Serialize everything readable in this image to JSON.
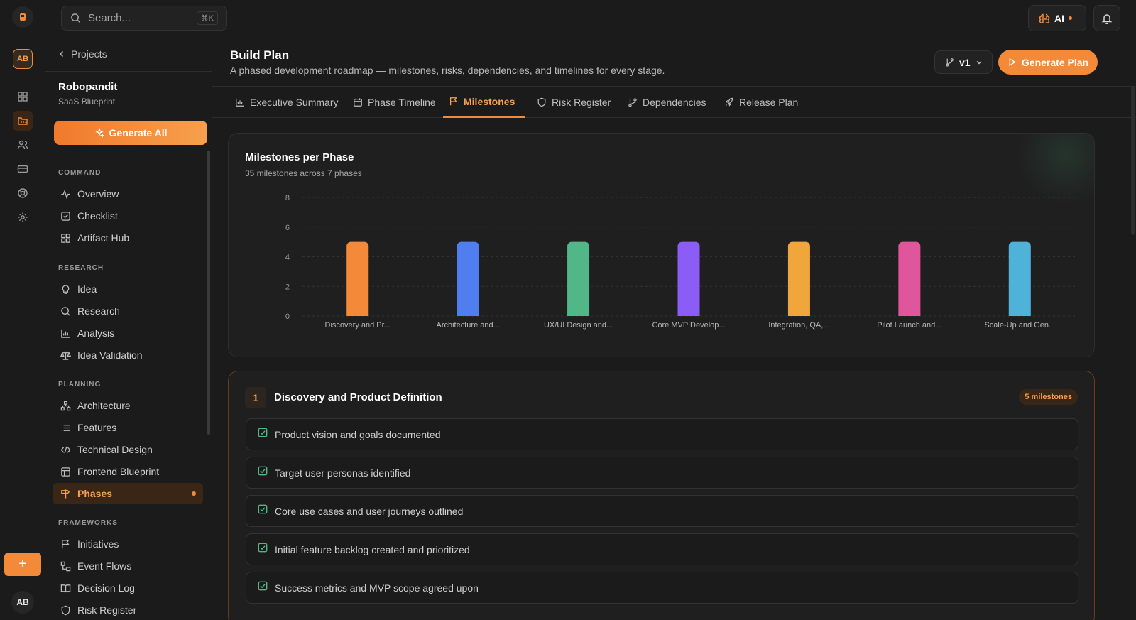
{
  "rail": {
    "avatar": "AB",
    "user": "AB",
    "plus": "+"
  },
  "topbar": {
    "search_placeholder": "Search...",
    "shortcut": "⌘K",
    "ai_label": "AI"
  },
  "sidebar": {
    "back_label": "Projects",
    "project_name": "Robopandit",
    "project_sub": "SaaS Blueprint",
    "generate_all": "Generate All",
    "sections": {
      "command": "COMMAND",
      "research": "RESEARCH",
      "planning": "PLANNING",
      "frameworks": "FRAMEWORKS"
    },
    "items": {
      "overview": "Overview",
      "checklist": "Checklist",
      "artifact_hub": "Artifact Hub",
      "idea": "Idea",
      "research": "Research",
      "analysis": "Analysis",
      "idea_validation": "Idea Validation",
      "architecture": "Architecture",
      "features": "Features",
      "technical_design": "Technical Design",
      "frontend_blueprint": "Frontend Blueprint",
      "phases": "Phases",
      "initiatives": "Initiatives",
      "event_flows": "Event Flows",
      "decision_log": "Decision Log",
      "risk_register": "Risk Register"
    }
  },
  "header": {
    "title": "Build Plan",
    "subtitle": "A phased development roadmap — milestones, risks, dependencies, and timelines for every stage.",
    "version": "v1",
    "generate_plan": "Generate Plan"
  },
  "tabs": {
    "executive_summary": "Executive Summary",
    "phase_timeline": "Phase Timeline",
    "milestones": "Milestones",
    "risk_register": "Risk Register",
    "dependencies": "Dependencies",
    "release_plan": "Release Plan"
  },
  "chart_card": {
    "title": "Milestones per Phase",
    "subtitle": "35 milestones across 7 phases"
  },
  "chart_data": {
    "type": "bar",
    "categories": [
      "Discovery and Pr...",
      "Architecture and...",
      "UX/UI Design and...",
      "Core MVP Develop...",
      "Integration, QA,...",
      "Pilot Launch and...",
      "Scale-Up and Gen..."
    ],
    "values": [
      5,
      5,
      5,
      5,
      5,
      5,
      5
    ],
    "colors": [
      "#f28a3a",
      "#4f7ef0",
      "#52b788",
      "#8b5cf6",
      "#f0a63a",
      "#e0569b",
      "#4fb3d9"
    ],
    "yticks": [
      0,
      2,
      4,
      6,
      8
    ],
    "ylim": [
      0,
      8
    ],
    "grid": true
  },
  "phase": {
    "number": "1",
    "title": "Discovery and Product Definition",
    "count": "5 milestones",
    "milestones": [
      "Product vision and goals documented",
      "Target user personas identified",
      "Core use cases and user journeys outlined",
      "Initial feature backlog created and prioritized",
      "Success metrics and MVP scope agreed upon"
    ]
  }
}
